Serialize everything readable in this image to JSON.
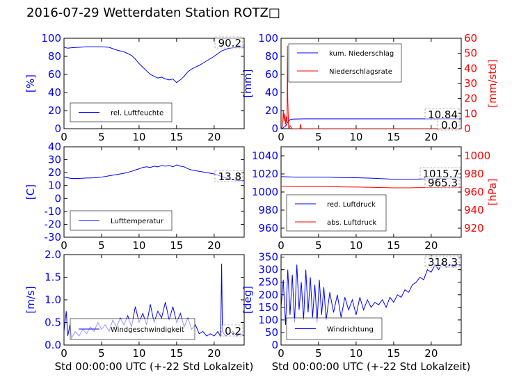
{
  "title": "2016-07-29 Wetterdaten Station ROTZ□",
  "colors": {
    "blue": "#0000ff",
    "red": "#ff0000",
    "black": "#000000"
  },
  "chart_data": [
    {
      "type": "line",
      "ylabel": "[%]",
      "xlim": [
        0,
        24
      ],
      "ylim": [
        0,
        100
      ],
      "xticks": [
        0,
        5,
        10,
        15,
        20
      ],
      "yticks": [
        0,
        20,
        40,
        60,
        80,
        100
      ],
      "legend": {
        "placement": "lower-left",
        "entries": [
          "rel. Luftfeuchte"
        ]
      },
      "last_value_label": "90.2",
      "series": [
        {
          "name": "rel. Luftfeuchte",
          "color": "#0000ff",
          "x": [
            0,
            0.5,
            1,
            2,
            3,
            4,
            5,
            6,
            7,
            8,
            9,
            9.5,
            10,
            10.5,
            11,
            11.5,
            12,
            12.5,
            13,
            13.5,
            14,
            14.5,
            15,
            15.5,
            16,
            16.5,
            17,
            17.5,
            18,
            19,
            20,
            21,
            22,
            23,
            24
          ],
          "y": [
            90,
            89,
            89.5,
            90,
            90.5,
            90.5,
            90.5,
            90,
            87,
            85,
            81,
            77,
            72,
            68,
            64,
            60,
            58,
            56,
            57,
            55,
            54,
            55,
            51,
            54,
            58,
            63,
            66,
            68,
            70,
            75,
            80,
            86,
            89,
            90,
            90.2
          ]
        }
      ]
    },
    {
      "type": "line",
      "ylabel": "[mm]",
      "ylabel_right": "[mm/std]",
      "xlim": [
        0,
        24
      ],
      "ylim": [
        0,
        100
      ],
      "ylim_right": [
        0,
        60
      ],
      "xticks": [
        0,
        5,
        10,
        15,
        20
      ],
      "yticks": [
        0,
        20,
        40,
        60,
        80,
        100
      ],
      "yticks_right": [
        0,
        10,
        20,
        30,
        40,
        50,
        60
      ],
      "legend": {
        "placement": "upper-left",
        "entries": [
          "kum. Niederschlag",
          "Niederschlagsrate"
        ]
      },
      "last_value_labels": [
        "10.84",
        "0.0"
      ],
      "series": [
        {
          "name": "kum. Niederschlag",
          "color": "#0000ff",
          "axis": "left",
          "x": [
            0,
            0.3,
            0.6,
            0.8,
            1.0,
            1.2,
            1.5,
            2,
            3,
            5,
            10,
            15,
            20,
            24
          ],
          "y": [
            0,
            1,
            3,
            6,
            8,
            10,
            10.5,
            10.7,
            10.84,
            10.84,
            10.84,
            10.84,
            10.84,
            10.84
          ]
        },
        {
          "name": "Niederschlagsrate",
          "color": "#ff0000",
          "axis": "right",
          "x": [
            0,
            0.2,
            0.3,
            0.4,
            0.5,
            0.6,
            0.7,
            0.8,
            0.85,
            0.9,
            1.0,
            1.05,
            1.1,
            1.2,
            1.5,
            2.0,
            2.5,
            2.6,
            2.7,
            3,
            5,
            10,
            15,
            20,
            24
          ],
          "y": [
            0,
            2,
            12,
            5,
            10,
            3,
            8,
            2,
            55,
            20,
            1,
            0,
            0,
            2,
            0,
            0,
            0,
            3,
            0,
            0,
            0,
            0,
            0,
            0,
            0
          ]
        }
      ]
    },
    {
      "type": "line",
      "ylabel": "[C]",
      "xlim": [
        0,
        24
      ],
      "ylim": [
        -30,
        40
      ],
      "xticks": [
        0,
        5,
        10,
        15,
        20
      ],
      "yticks": [
        -30,
        -20,
        -10,
        0,
        10,
        20,
        30,
        40
      ],
      "legend": {
        "placement": "lower-left",
        "entries": [
          "Lufttemperatur"
        ]
      },
      "last_value_label": "13.8",
      "series": [
        {
          "name": "Lufttemperatur",
          "color": "#0000ff",
          "x": [
            0,
            0.5,
            1,
            1.5,
            2,
            3,
            4,
            5,
            6,
            7,
            8,
            9,
            9.5,
            10,
            10.5,
            11,
            11.5,
            12,
            12.5,
            13,
            13.5,
            14,
            14.5,
            15,
            15.5,
            16,
            16.5,
            17,
            18,
            19,
            20,
            21,
            22,
            23,
            24
          ],
          "y": [
            16.5,
            16,
            15.5,
            15.5,
            15.5,
            15.8,
            16,
            16.5,
            17.5,
            18.5,
            19.5,
            21,
            22,
            23,
            24,
            24.5,
            24,
            25,
            24.5,
            25.5,
            25,
            25.5,
            24.5,
            26,
            25,
            24.5,
            23,
            22,
            21,
            20,
            19,
            17,
            15,
            14,
            13.8
          ]
        }
      ]
    },
    {
      "type": "line",
      "ylabel_right": "[hPa]",
      "xlim": [
        0,
        24
      ],
      "ylim": [
        950,
        1050
      ],
      "ylim_right": [
        910,
        1010
      ],
      "xticks": [
        0,
        5,
        10,
        15,
        20
      ],
      "yticks": [
        960,
        980,
        1000,
        1020,
        1040
      ],
      "yticks_right": [
        920,
        940,
        960,
        980,
        1000
      ],
      "legend": {
        "placement": "lower-left",
        "entries": [
          "red. Luftdruck",
          "abs. Luftdruck"
        ]
      },
      "last_value_labels": [
        "1015.7",
        "965.3"
      ],
      "series": [
        {
          "name": "red. Luftdruck",
          "color": "#0000ff",
          "axis": "left",
          "x": [
            0,
            2,
            4,
            6,
            8,
            10,
            12,
            14,
            15,
            16,
            17,
            18,
            20,
            22,
            24
          ],
          "y": [
            1017,
            1016.5,
            1016.5,
            1016.5,
            1016,
            1015.8,
            1015.3,
            1014.5,
            1014,
            1014,
            1014,
            1014.2,
            1014.7,
            1015.3,
            1015.7
          ]
        },
        {
          "name": "abs. Luftdruck",
          "color": "#ff0000",
          "axis": "right",
          "x": [
            0,
            2,
            4,
            6,
            8,
            10,
            12,
            14,
            15,
            16,
            17,
            18,
            20,
            22,
            24
          ],
          "y": [
            966.5,
            966,
            966,
            966,
            965.7,
            965.5,
            965.2,
            964.8,
            964.6,
            964.6,
            964.6,
            964.8,
            965,
            965.2,
            965.3
          ]
        }
      ]
    },
    {
      "type": "line",
      "ylabel": "[m/s]",
      "xlabel": "Std 00:00:00 UTC (+-22 Std Lokalzeit)",
      "xlim": [
        0,
        24
      ],
      "ylim": [
        0,
        2
      ],
      "xticks": [
        0,
        5,
        10,
        15,
        20
      ],
      "yticks": [
        0.0,
        0.5,
        1.0,
        1.5,
        2.0
      ],
      "legend": {
        "placement": "lower-left",
        "entries": [
          "Windgeschwindigkeit"
        ]
      },
      "last_value_label": "0.2",
      "series": [
        {
          "name": "Windgeschwindigkeit",
          "color": "#0000ff",
          "x": [
            0,
            0.3,
            0.5,
            0.8,
            1,
            1.5,
            2,
            2.5,
            3,
            3.5,
            4,
            4.5,
            5,
            5.5,
            6,
            6.5,
            7,
            7.5,
            8,
            8.5,
            9,
            9.5,
            10,
            10.5,
            11,
            11.5,
            12,
            12.5,
            13,
            13.5,
            14,
            14.5,
            15,
            15.5,
            16,
            16.5,
            17,
            17.5,
            18,
            18.5,
            19,
            19.5,
            20,
            20.5,
            20.8,
            20.9,
            21,
            21.1,
            21.5,
            22,
            22.5,
            23,
            23.5,
            24
          ],
          "y": [
            0.3,
            0.75,
            0.2,
            0.45,
            0.15,
            0.3,
            0.2,
            0.35,
            0.25,
            0.4,
            0.3,
            0.5,
            0.35,
            0.45,
            0.3,
            0.55,
            0.4,
            0.6,
            0.45,
            0.65,
            0.4,
            0.85,
            0.5,
            0.7,
            0.45,
            0.9,
            0.5,
            0.75,
            0.6,
            0.95,
            0.55,
            0.85,
            0.5,
            0.7,
            0.4,
            0.6,
            0.35,
            0.45,
            0.25,
            0.3,
            0.2,
            0.25,
            0.2,
            0.3,
            0.2,
            0.5,
            1.8,
            0.3,
            0.2,
            0.25,
            0.3,
            0.2,
            0.25,
            0.2
          ]
        }
      ]
    },
    {
      "type": "line",
      "ylabel": "[deg]",
      "xlabel": "Std 00:00:00 UTC (+-22 Std Lokalzeit)",
      "xlim": [
        0,
        24
      ],
      "ylim": [
        0,
        360
      ],
      "xticks": [
        0,
        5,
        10,
        15,
        20
      ],
      "yticks": [
        0,
        50,
        100,
        150,
        200,
        250,
        300,
        350
      ],
      "legend": {
        "placement": "lower-left",
        "entries": [
          "Windrichtung"
        ]
      },
      "last_value_label": "318.3",
      "series": [
        {
          "name": "Windrichtung",
          "color": "#0000ff",
          "x": [
            0,
            0.3,
            0.6,
            0.9,
            1.2,
            1.5,
            1.8,
            2.1,
            2.4,
            2.7,
            3,
            3.3,
            3.6,
            3.9,
            4.2,
            4.5,
            4.8,
            5.1,
            5.4,
            5.7,
            6,
            6.5,
            7,
            7.5,
            8,
            8.5,
            9,
            9.5,
            10,
            10.5,
            11,
            11.5,
            12,
            12.5,
            13,
            13.5,
            14,
            14.5,
            15,
            15.5,
            16,
            16.5,
            17,
            17.5,
            18,
            18.5,
            19,
            19.5,
            20,
            20.5,
            21,
            21.5,
            22,
            22.5,
            23,
            23.5,
            24
          ],
          "y": [
            150,
            260,
            80,
            300,
            120,
            280,
            90,
            320,
            140,
            250,
            100,
            300,
            130,
            270,
            110,
            240,
            90,
            260,
            120,
            230,
            100,
            210,
            130,
            200,
            110,
            190,
            140,
            180,
            120,
            190,
            140,
            180,
            150,
            170,
            160,
            180,
            150,
            190,
            170,
            200,
            190,
            220,
            210,
            240,
            250,
            270,
            260,
            300,
            290,
            320,
            300,
            330,
            310,
            320,
            310,
            320,
            318
          ]
        }
      ]
    }
  ]
}
